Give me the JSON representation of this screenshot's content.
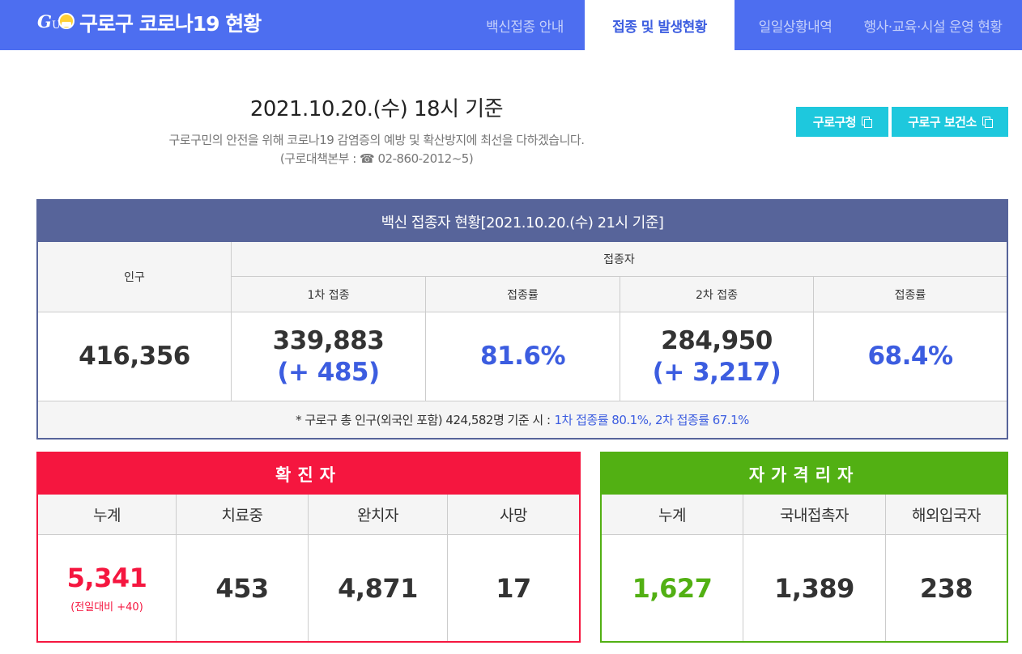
{
  "header": {
    "title": "구로구 코로나19 현황",
    "nav": [
      {
        "label": "백신접종 안내"
      },
      {
        "label": "접종 및 발생현황"
      },
      {
        "label": "일일상황내역"
      },
      {
        "label": "행사·교육·시설 운영 현황"
      }
    ],
    "active_nav": "접종 및 발생현황"
  },
  "info": {
    "date_title": "2021.10.20.(수) 18시 기준",
    "description": "구로구민의 안전을 위해 코로나19 감염증의 예방 및 확산방지에 최선을 다하겠습니다.",
    "contact": "(구로대책본부 : ☎ 02-860-2012~5)"
  },
  "links": {
    "office": "구로구청",
    "health_center": "구로구 보건소"
  },
  "vaccine": {
    "title": "백신 접종자 현황[2021.10.20.(수) 21시 기준]",
    "population_label": "인구",
    "vaccinated_label": "접종자",
    "first_dose_label": "1차 접종",
    "rate_label_1": "접종률",
    "second_dose_label": "2차 접종",
    "rate_label_2": "접종률",
    "population": "416,356",
    "first_dose": "339,883",
    "first_dose_delta": "(+ 485)",
    "first_rate": "81.6%",
    "second_dose": "284,950",
    "second_dose_delta": "(+ 3,217)",
    "second_rate": "68.4%",
    "note": "* 구로구 총 인구(외국인 포함) 424,582명 기준 시 :",
    "note_highlight": "1차 접종률 80.1%, 2차 접종률 67.1%"
  },
  "confirmed": {
    "title": "확진자",
    "labels": [
      "누계",
      "치료중",
      "완치자",
      "사망"
    ],
    "total": "5,341",
    "total_change": "(전일대비 +40)",
    "in_treatment": "453",
    "recovered": "4,871",
    "deaths": "17"
  },
  "quarantine": {
    "title": "자가격리자",
    "labels": [
      "누계",
      "국내접촉자",
      "해외입국자"
    ],
    "total": "1,627",
    "domestic": "1,389",
    "overseas": "238"
  },
  "colors": {
    "header_blue": "#4d6ef0",
    "vaccine_header": "#57649a",
    "link_button": "#1ec8dd",
    "accent_blue": "#3c5de0",
    "confirmed_red": "#f5163f",
    "quarantine_green": "#52b013"
  }
}
